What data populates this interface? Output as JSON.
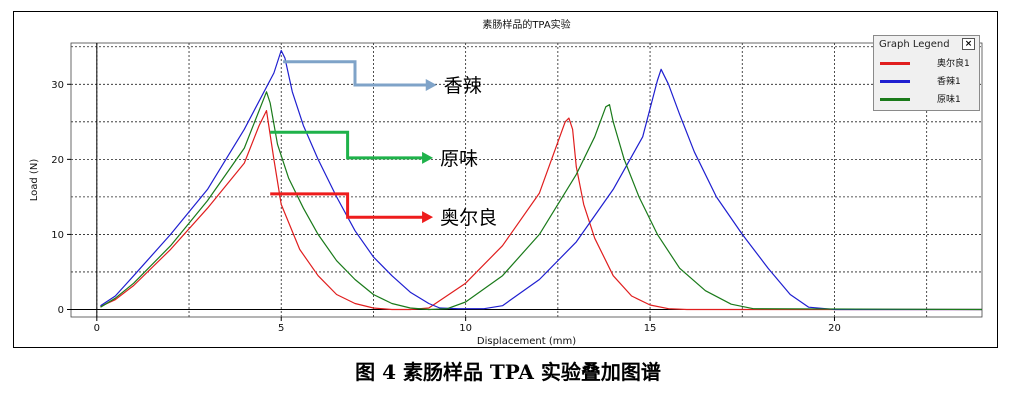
{
  "caption": "图 4  素肠样品 TPA 实验叠加图谱",
  "legend": {
    "title": "Graph Legend",
    "close_label": "×",
    "items": [
      {
        "label": "奥尔良1",
        "color": "#e01e1e"
      },
      {
        "label": "香辣1",
        "color": "#1f1fd0"
      },
      {
        "label": "原味1",
        "color": "#1a7a1a"
      }
    ]
  },
  "annotations": [
    {
      "label": "香辣",
      "color": "#7fa3c8"
    },
    {
      "label": "原味",
      "color": "#1fb24a"
    },
    {
      "label": "奥尔良",
      "color": "#ee1c1c"
    }
  ],
  "chart_data": {
    "type": "line",
    "title": "素肠样品的TPA实验",
    "xlabel": "Displacement (mm)",
    "ylabel": "Load (N)",
    "xlim": [
      -0.7,
      24
    ],
    "ylim": [
      -1,
      35.5
    ],
    "xticks": [
      0,
      5,
      10,
      15,
      20
    ],
    "yticks": [
      0,
      10,
      20,
      30
    ],
    "grid": true,
    "legend_position": "top-right",
    "series": [
      {
        "name": "奥尔良1",
        "color": "#e01e1e",
        "x": [
          0.1,
          0.5,
          1,
          2,
          3,
          4,
          4.4,
          4.5,
          4.6,
          4.8,
          5.0,
          5.5,
          6.0,
          6.5,
          7.0,
          7.5,
          8.0,
          8.5,
          9.0,
          10,
          11,
          12,
          12.7,
          12.8,
          12.9,
          13.0,
          13.2,
          13.5,
          14.0,
          14.5,
          15.0,
          15.5,
          16.0,
          24
        ],
        "y": [
          0.4,
          1.3,
          3.2,
          8.0,
          13.5,
          19.5,
          24.5,
          25.5,
          26.5,
          20.0,
          14.0,
          8.0,
          4.5,
          2.0,
          0.8,
          0.2,
          0.0,
          0.0,
          0.2,
          3.5,
          8.5,
          15.5,
          25.0,
          25.5,
          24.0,
          19.0,
          14.0,
          9.5,
          4.5,
          1.8,
          0.6,
          0.1,
          0.0,
          0.0
        ]
      },
      {
        "name": "香辣1",
        "color": "#1f1fd0",
        "x": [
          0.1,
          0.5,
          1,
          2,
          3,
          4,
          4.8,
          5.0,
          5.1,
          5.3,
          5.6,
          6.0,
          6.5,
          7.0,
          7.5,
          8.0,
          8.5,
          9.0,
          9.3,
          9.8,
          10.5,
          11,
          12,
          13,
          14,
          14.8,
          15.2,
          15.3,
          15.5,
          15.8,
          16.2,
          16.8,
          17.5,
          18.2,
          18.8,
          19.3,
          20,
          24
        ],
        "y": [
          0.5,
          1.8,
          4.5,
          10.0,
          16.0,
          24.0,
          31.5,
          34.5,
          33.5,
          29.0,
          24.5,
          20.0,
          15.0,
          10.5,
          7.0,
          4.5,
          2.3,
          0.8,
          0.2,
          0.1,
          0.1,
          0.5,
          4.0,
          9.0,
          16.0,
          23.0,
          30.5,
          32.0,
          30.0,
          26.0,
          21.0,
          15.0,
          10.0,
          5.5,
          2.0,
          0.3,
          0.0,
          0.0
        ]
      },
      {
        "name": "原味1",
        "color": "#1a7a1a",
        "x": [
          0.1,
          0.5,
          1,
          2,
          3,
          4,
          4.4,
          4.6,
          4.7,
          4.9,
          5.2,
          5.6,
          6.0,
          6.5,
          7.0,
          7.5,
          8.0,
          8.5,
          9.0,
          9.5,
          10,
          11,
          12,
          13,
          13.5,
          13.8,
          13.9,
          14.0,
          14.3,
          14.7,
          15.2,
          15.8,
          16.5,
          17.2,
          17.8,
          24
        ],
        "y": [
          0.3,
          1.5,
          3.5,
          8.5,
          14.5,
          21.5,
          26.5,
          29.0,
          27.5,
          22.0,
          17.5,
          13.5,
          10.0,
          6.5,
          4.0,
          2.0,
          0.8,
          0.2,
          0.0,
          0.1,
          1.0,
          4.5,
          10.0,
          18.0,
          23.0,
          27.0,
          27.3,
          25.0,
          20.0,
          15.0,
          10.0,
          5.5,
          2.5,
          0.7,
          0.1,
          0.0
        ]
      }
    ]
  }
}
